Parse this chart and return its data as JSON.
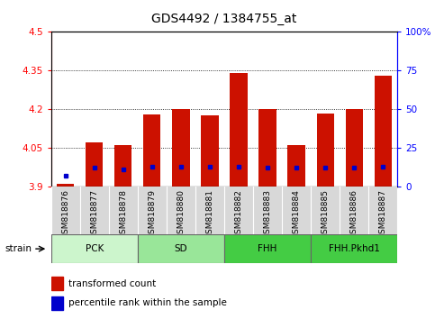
{
  "title": "GDS4492 / 1384755_at",
  "samples": [
    "GSM818876",
    "GSM818877",
    "GSM818878",
    "GSM818879",
    "GSM818880",
    "GSM818881",
    "GSM818882",
    "GSM818883",
    "GSM818884",
    "GSM818885",
    "GSM818886",
    "GSM818887"
  ],
  "red_values": [
    3.91,
    4.07,
    4.06,
    4.18,
    4.2,
    4.175,
    4.34,
    4.2,
    4.06,
    4.185,
    4.2,
    4.33
  ],
  "blue_values_pct": [
    7,
    12,
    11,
    13,
    13,
    13,
    13,
    12,
    12,
    12,
    12,
    13
  ],
  "ylim_left": [
    3.9,
    4.5
  ],
  "ylim_right": [
    0,
    100
  ],
  "yticks_left": [
    3.9,
    4.05,
    4.2,
    4.35,
    4.5
  ],
  "yticks_right": [
    0,
    25,
    50,
    75,
    100
  ],
  "ytick_labels_left": [
    "3.9",
    "4.05",
    "4.2",
    "4.35",
    "4.5"
  ],
  "ytick_labels_right": [
    "0",
    "25",
    "50",
    "75",
    "100%"
  ],
  "groups": [
    {
      "label": "PCK",
      "start": 0,
      "end": 2,
      "color": "#ccf5cc"
    },
    {
      "label": "SD",
      "start": 3,
      "end": 5,
      "color": "#99e699"
    },
    {
      "label": "FHH",
      "start": 6,
      "end": 8,
      "color": "#44cc44"
    },
    {
      "label": "FHH.Pkhd1",
      "start": 9,
      "end": 11,
      "color": "#44cc44"
    }
  ],
  "bar_color": "#cc1100",
  "blue_color": "#0000cc",
  "bar_bottom": 3.9,
  "bar_width": 0.6,
  "strain_label": "strain",
  "legend_red": "transformed count",
  "legend_blue": "percentile rank within the sample",
  "tick_bg_color": "#d8d8d8"
}
